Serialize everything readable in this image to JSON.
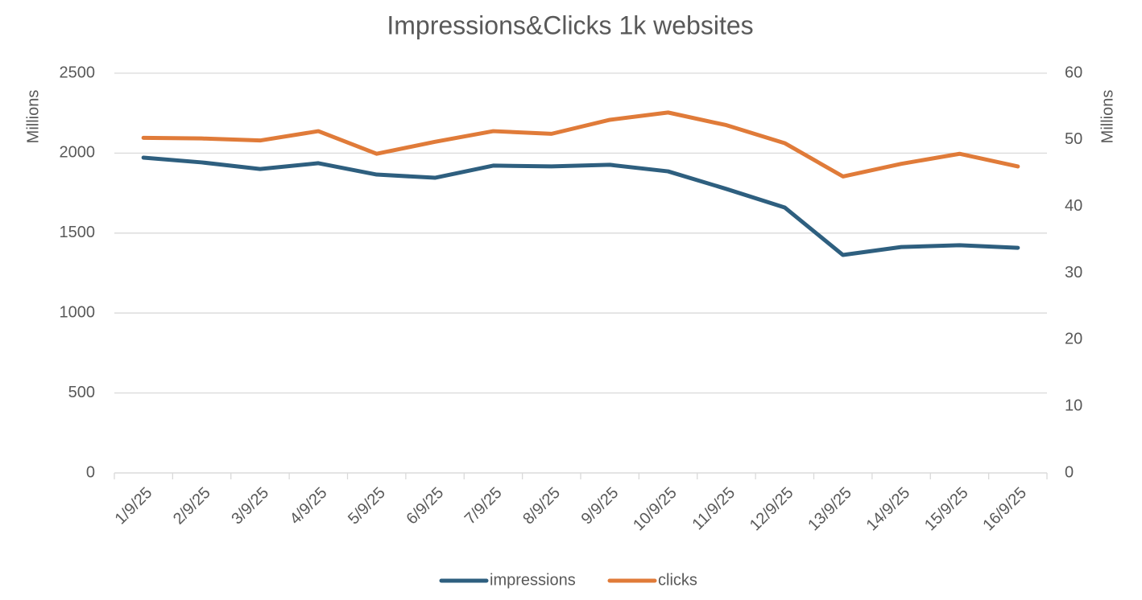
{
  "chart_data": {
    "type": "line",
    "title": "Impressions&Clicks 1k websites",
    "ylabel": "Millions",
    "y2label": "Millions",
    "categories": [
      "1/9/25",
      "2/9/25",
      "3/9/25",
      "4/9/25",
      "5/9/25",
      "6/9/25",
      "7/9/25",
      "8/9/25",
      "9/9/25",
      "10/9/25",
      "11/9/25",
      "12/9/25",
      "13/9/25",
      "14/9/25",
      "15/9/25",
      "16/9/25"
    ],
    "series": [
      {
        "name": "impressions",
        "color": "#2e5f7f",
        "values": [
          1972,
          1942,
          1901,
          1937,
          1866,
          1846,
          1922,
          1917,
          1927,
          1886,
          1776,
          1660,
          1363,
          1413,
          1424,
          1408
        ]
      },
      {
        "name": "clicks",
        "color": "#e07b39",
        "axis": "y2",
        "values": [
          50.3,
          50.2,
          49.9,
          51.3,
          47.9,
          49.7,
          51.3,
          50.9,
          53.0,
          54.1,
          52.2,
          49.5,
          44.5,
          46.4,
          47.9,
          46.0
        ]
      }
    ],
    "ylim": [
      0,
      2500
    ],
    "yticks": [
      0,
      500,
      1000,
      1500,
      2000,
      2500
    ],
    "y2lim": [
      0,
      60
    ],
    "y2ticks": [
      0,
      10,
      20,
      30,
      40,
      50,
      60
    ],
    "grid": true,
    "legend": "bottom"
  }
}
